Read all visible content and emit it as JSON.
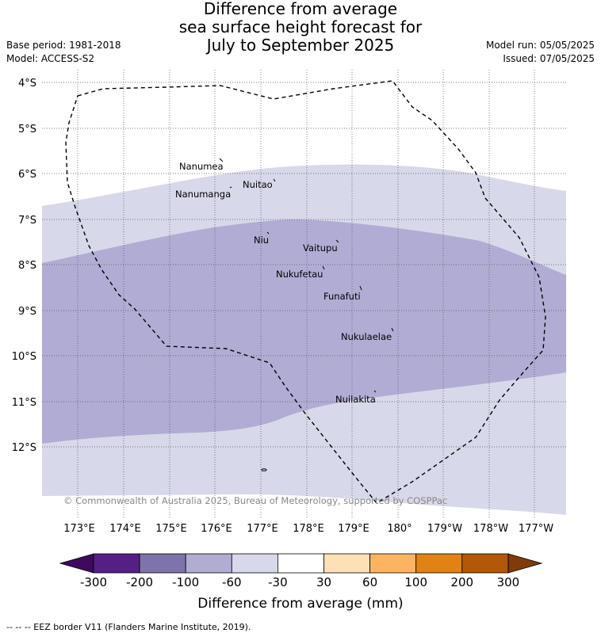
{
  "title": {
    "line1": "Difference from average",
    "line2": "sea surface height forecast for",
    "line3": "July to September 2025"
  },
  "meta": {
    "base_period": "Base period: 1981-2018",
    "model": "Model: ACCESS-S2",
    "model_run": "Model run: 05/05/2025",
    "issued": "Issued: 07/05/2025"
  },
  "map": {
    "lat_labels": [
      "4°S",
      "5°S",
      "6°S",
      "7°S",
      "8°S",
      "9°S",
      "10°S",
      "11°S",
      "12°S"
    ],
    "lon_labels": [
      "173°E",
      "174°E",
      "175°E",
      "176°E",
      "177°E",
      "178°E",
      "179°E",
      "180°",
      "179°W",
      "178°W",
      "177°W"
    ],
    "islands": [
      "Nanumea",
      "Nuitao",
      "Nanumanga",
      "Niu",
      "Vaitupu",
      "Nukufetau",
      "Funafuti",
      "Nukulaelae",
      "Nuilakita"
    ],
    "copyright": "© Commonwealth of Australia 2025, Bureau of Meteorology, supported by COSPPac",
    "colors": {
      "band_-60_-30": "#d7d8e9",
      "band_-100_-60": "#b0acd4",
      "eez_line": "#000000"
    }
  },
  "colorbar": {
    "tick_labels": [
      "-300",
      "-200",
      "-100",
      "-60",
      "-30",
      "30",
      "60",
      "100",
      "200",
      "300"
    ],
    "label": "Difference from average (mm)",
    "colors": [
      "#3f0a5e",
      "#542085",
      "#7f73ac",
      "#b0acd4",
      "#d7d8e9",
      "#ffffff",
      "#fee0b6",
      "#fdb462",
      "#e08214",
      "#b35806",
      "#7f3b08"
    ]
  },
  "footnote": "--  --  -- EEZ border V11 (Flanders Marine Institute, 2019)."
}
